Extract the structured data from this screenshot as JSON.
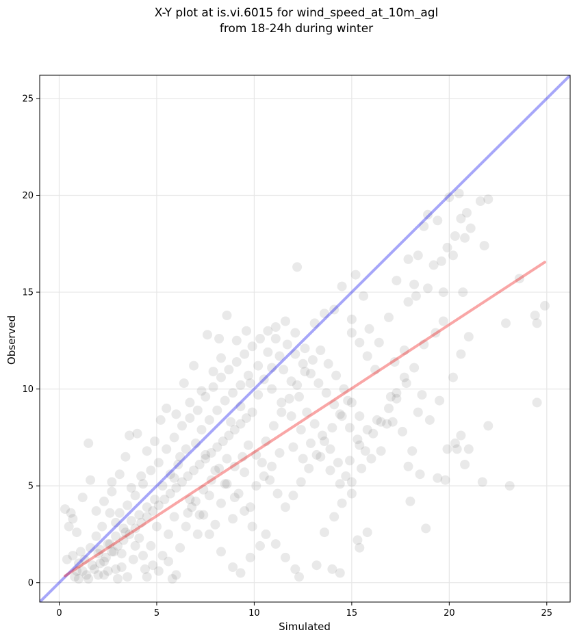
{
  "chart_data": {
    "type": "scatter",
    "title": [
      "X-Y plot at is.vi.6015 for wind_speed_at_10m_agl",
      "from 18-24h during winter"
    ],
    "xlabel": "Simulated",
    "ylabel": "Observed",
    "xlim": [
      -1,
      26.2
    ],
    "ylim": [
      -1,
      26.2
    ],
    "xticks": [
      0,
      5,
      10,
      15,
      20,
      25
    ],
    "yticks": [
      0,
      5,
      10,
      15,
      20,
      25
    ],
    "grid": true,
    "point_color": "#555555",
    "point_opacity": 0.13,
    "identity_line": {
      "color": "#0000ee",
      "opacity": 0.35,
      "from": [
        -1,
        -1
      ],
      "to": [
        26.2,
        26.2
      ]
    },
    "fit_line": {
      "color": "#ee0000",
      "opacity": 0.35,
      "from": [
        0.3,
        0.35
      ],
      "to": [
        24.9,
        16.55
      ]
    },
    "points": [
      [
        0.3,
        3.8
      ],
      [
        0.6,
        3.6
      ],
      [
        0.7,
        3.3
      ],
      [
        0.5,
        2.9
      ],
      [
        0.9,
        2.6
      ],
      [
        0.4,
        1.2
      ],
      [
        0.7,
        1.4
      ],
      [
        1.0,
        1.0
      ],
      [
        1.2,
        0.6
      ],
      [
        0.8,
        0.3
      ],
      [
        1.5,
        0.2
      ],
      [
        2.0,
        0.4
      ],
      [
        2.5,
        0.6
      ],
      [
        3.0,
        0.2
      ],
      [
        3.2,
        0.8
      ],
      [
        1.6,
        1.8
      ],
      [
        1.9,
        2.4
      ],
      [
        2.2,
        2.9
      ],
      [
        2.6,
        3.6
      ],
      [
        1.2,
        4.4
      ],
      [
        1.6,
        5.3
      ],
      [
        1.5,
        7.2
      ],
      [
        2.7,
        5.2
      ],
      [
        3.1,
        5.6
      ],
      [
        3.4,
        6.5
      ],
      [
        3.6,
        7.6
      ],
      [
        4.0,
        7.7
      ],
      [
        4.5,
        6.8
      ],
      [
        4.9,
        7.3
      ],
      [
        3.7,
        4.9
      ],
      [
        4.2,
        5.5
      ],
      [
        2.9,
        3.1
      ],
      [
        3.4,
        2.6
      ],
      [
        3.9,
        1.9
      ],
      [
        4.3,
        1.4
      ],
      [
        4.8,
        0.9
      ],
      [
        4.5,
        0.3
      ],
      [
        5.1,
        0.6
      ],
      [
        5.6,
        1.1
      ],
      [
        6.0,
        0.4
      ],
      [
        5.8,
        0.2
      ],
      [
        2.3,
        1.1
      ],
      [
        2.8,
        1.6
      ],
      [
        5.2,
        8.4
      ],
      [
        6.0,
        8.7
      ],
      [
        6.7,
        9.3
      ],
      [
        7.3,
        9.9
      ],
      [
        7.9,
        10.9
      ],
      [
        8.3,
        11.6
      ],
      [
        7.6,
        12.8
      ],
      [
        8.2,
        12.6
      ],
      [
        8.6,
        13.8
      ],
      [
        9.1,
        12.5
      ],
      [
        9.6,
        13.0
      ],
      [
        6.9,
        11.2
      ],
      [
        6.4,
        10.3
      ],
      [
        5.5,
        9.0
      ],
      [
        6.2,
        6.5
      ],
      [
        5.9,
        5.4
      ],
      [
        6.7,
        4.3
      ],
      [
        7.2,
        3.5
      ],
      [
        7.7,
        2.5
      ],
      [
        8.3,
        1.6
      ],
      [
        8.9,
        0.8
      ],
      [
        9.3,
        0.5
      ],
      [
        9.8,
        1.3
      ],
      [
        10.3,
        1.9
      ],
      [
        7.0,
        7.2
      ],
      [
        7.5,
        6.6
      ],
      [
        8.0,
        5.8
      ],
      [
        8.5,
        5.1
      ],
      [
        9.0,
        4.4
      ],
      [
        9.5,
        3.7
      ],
      [
        9.9,
        2.9
      ],
      [
        10.6,
        2.5
      ],
      [
        11.1,
        2.0
      ],
      [
        11.6,
        1.3
      ],
      [
        12.1,
        0.7
      ],
      [
        12.3,
        0.3
      ],
      [
        13.2,
        0.9
      ],
      [
        14.0,
        0.7
      ],
      [
        14.4,
        0.5
      ],
      [
        13.6,
        2.6
      ],
      [
        14.1,
        3.4
      ],
      [
        14.5,
        4.1
      ],
      [
        15.0,
        4.6
      ],
      [
        8.8,
        8.3
      ],
      [
        9.3,
        9.1
      ],
      [
        9.8,
        10.3
      ],
      [
        10.2,
        11.2
      ],
      [
        10.7,
        11.9
      ],
      [
        11.1,
        12.6
      ],
      [
        11.6,
        13.5
      ],
      [
        12.1,
        12.9
      ],
      [
        12.6,
        12.1
      ],
      [
        13.1,
        13.4
      ],
      [
        13.6,
        13.9
      ],
      [
        14.1,
        14.1
      ],
      [
        14.5,
        15.3
      ],
      [
        12.2,
        16.3
      ],
      [
        15.2,
        15.9
      ],
      [
        15.6,
        14.8
      ],
      [
        15.0,
        13.6
      ],
      [
        15.9,
        13.1
      ],
      [
        16.4,
        12.4
      ],
      [
        16.9,
        13.7
      ],
      [
        10.9,
        10.0
      ],
      [
        11.4,
        9.3
      ],
      [
        11.9,
        8.6
      ],
      [
        12.4,
        7.9
      ],
      [
        12.9,
        7.2
      ],
      [
        13.4,
        6.5
      ],
      [
        13.9,
        5.8
      ],
      [
        14.4,
        5.1
      ],
      [
        14.9,
        6.3
      ],
      [
        15.4,
        7.1
      ],
      [
        15.8,
        7.9
      ],
      [
        16.3,
        8.4
      ],
      [
        16.8,
        8.2
      ],
      [
        17.3,
        9.5
      ],
      [
        17.8,
        10.3
      ],
      [
        18.2,
        11.1
      ],
      [
        18.7,
        12.3
      ],
      [
        19.3,
        12.9
      ],
      [
        19.7,
        13.5
      ],
      [
        17.0,
        9.6
      ],
      [
        15.0,
        5.2
      ],
      [
        15.5,
        5.9
      ],
      [
        16.0,
        6.4
      ],
      [
        16.5,
        6.8
      ],
      [
        15.8,
        2.6
      ],
      [
        15.3,
        2.2
      ],
      [
        15.4,
        1.8
      ],
      [
        17.1,
        8.3
      ],
      [
        17.6,
        7.8
      ],
      [
        18.1,
        6.8
      ],
      [
        17.9,
        6.0
      ],
      [
        18.5,
        5.6
      ],
      [
        18.0,
        4.2
      ],
      [
        18.8,
        2.8
      ],
      [
        19.4,
        5.4
      ],
      [
        19.8,
        5.3
      ],
      [
        19.9,
        6.9
      ],
      [
        20.3,
        7.2
      ],
      [
        20.4,
        6.9
      ],
      [
        20.8,
        6.1
      ],
      [
        21.0,
        6.9
      ],
      [
        20.6,
        7.6
      ],
      [
        21.7,
        5.2
      ],
      [
        22.0,
        8.1
      ],
      [
        23.1,
        5.0
      ],
      [
        24.5,
        9.3
      ],
      [
        17.2,
        11.4
      ],
      [
        17.7,
        12.0
      ],
      [
        18.3,
        14.8
      ],
      [
        18.9,
        15.2
      ],
      [
        19.2,
        16.4
      ],
      [
        19.6,
        16.6
      ],
      [
        19.9,
        17.3
      ],
      [
        20.3,
        17.9
      ],
      [
        20.6,
        18.8
      ],
      [
        20.9,
        19.1
      ],
      [
        21.1,
        18.3
      ],
      [
        21.6,
        19.7
      ],
      [
        22.0,
        19.8
      ],
      [
        20.0,
        19.9
      ],
      [
        20.5,
        20.1
      ],
      [
        19.4,
        18.7
      ],
      [
        18.7,
        18.4
      ],
      [
        18.9,
        19.0
      ],
      [
        21.8,
        17.4
      ],
      [
        20.8,
        17.8
      ],
      [
        20.2,
        16.9
      ],
      [
        18.4,
        16.9
      ],
      [
        17.9,
        16.7
      ],
      [
        17.9,
        14.5
      ],
      [
        18.2,
        15.4
      ],
      [
        17.3,
        15.6
      ],
      [
        19.7,
        15.0
      ],
      [
        20.7,
        15.0
      ],
      [
        21.0,
        12.7
      ],
      [
        20.2,
        10.6
      ],
      [
        20.6,
        11.8
      ],
      [
        22.9,
        13.4
      ],
      [
        23.6,
        15.7
      ],
      [
        24.4,
        13.8
      ],
      [
        24.5,
        13.4
      ],
      [
        24.9,
        14.3
      ],
      [
        19.5,
        9.4
      ],
      [
        19.0,
        8.4
      ],
      [
        18.4,
        8.8
      ],
      [
        18.6,
        9.7
      ],
      [
        1.0,
        0.2
      ],
      [
        1.4,
        0.4
      ],
      [
        1.8,
        0.7
      ],
      [
        2.1,
        1.0
      ],
      [
        2.4,
        1.3
      ],
      [
        2.7,
        1.6
      ],
      [
        3.0,
        1.9
      ],
      [
        3.3,
        2.2
      ],
      [
        3.6,
        2.5
      ],
      [
        3.9,
        2.8
      ],
      [
        4.2,
        3.1
      ],
      [
        4.5,
        3.4
      ],
      [
        4.8,
        3.7
      ],
      [
        5.1,
        4.0
      ],
      [
        5.4,
        4.3
      ],
      [
        5.7,
        4.6
      ],
      [
        6.0,
        4.9
      ],
      [
        6.3,
        5.2
      ],
      [
        6.6,
        5.5
      ],
      [
        6.9,
        5.8
      ],
      [
        7.2,
        6.1
      ],
      [
        7.5,
        6.4
      ],
      [
        7.8,
        6.7
      ],
      [
        8.1,
        7.0
      ],
      [
        8.4,
        7.3
      ],
      [
        8.7,
        7.6
      ],
      [
        9.0,
        7.9
      ],
      [
        9.3,
        8.2
      ],
      [
        9.6,
        8.5
      ],
      [
        9.9,
        8.8
      ],
      [
        1.7,
        0.9
      ],
      [
        2.0,
        1.5
      ],
      [
        2.3,
        0.4
      ],
      [
        2.6,
        2.0
      ],
      [
        2.9,
        0.7
      ],
      [
        3.2,
        1.5
      ],
      [
        3.5,
        0.3
      ],
      [
        3.8,
        1.2
      ],
      [
        4.1,
        2.3
      ],
      [
        4.4,
        0.7
      ],
      [
        4.7,
        1.9
      ],
      [
        5.0,
        2.9
      ],
      [
        5.3,
        1.4
      ],
      [
        5.6,
        2.5
      ],
      [
        5.9,
        3.4
      ],
      [
        6.2,
        1.8
      ],
      [
        6.5,
        2.9
      ],
      [
        6.8,
        3.9
      ],
      [
        7.1,
        2.5
      ],
      [
        7.4,
        3.5
      ],
      [
        7.7,
        4.5
      ],
      [
        8.0,
        3.0
      ],
      [
        8.3,
        4.1
      ],
      [
        8.6,
        5.1
      ],
      [
        8.9,
        3.3
      ],
      [
        9.2,
        4.6
      ],
      [
        9.5,
        5.7
      ],
      [
        9.8,
        3.9
      ],
      [
        10.1,
        5.0
      ],
      [
        10.4,
        6.2
      ],
      [
        1.9,
        3.7
      ],
      [
        2.3,
        4.2
      ],
      [
        2.7,
        4.7
      ],
      [
        3.1,
        3.6
      ],
      [
        3.5,
        4.0
      ],
      [
        3.9,
        4.5
      ],
      [
        4.3,
        5.1
      ],
      [
        4.7,
        5.8
      ],
      [
        5.1,
        6.2
      ],
      [
        5.5,
        6.9
      ],
      [
        5.9,
        7.5
      ],
      [
        6.3,
        8.1
      ],
      [
        6.7,
        8.5
      ],
      [
        7.1,
        8.9
      ],
      [
        7.5,
        9.6
      ],
      [
        7.9,
        10.1
      ],
      [
        8.3,
        10.6
      ],
      [
        8.7,
        11.0
      ],
      [
        9.1,
        11.4
      ],
      [
        9.5,
        11.8
      ],
      [
        9.9,
        12.2
      ],
      [
        10.3,
        12.6
      ],
      [
        10.7,
        13.0
      ],
      [
        11.1,
        13.2
      ],
      [
        10.6,
        7.3
      ],
      [
        11.0,
        8.1
      ],
      [
        11.4,
        8.8
      ],
      [
        11.8,
        9.5
      ],
      [
        12.2,
        10.2
      ],
      [
        12.6,
        10.9
      ],
      [
        13.0,
        11.5
      ],
      [
        13.4,
        12.0
      ],
      [
        13.8,
        11.3
      ],
      [
        14.2,
        10.7
      ],
      [
        14.6,
        10.0
      ],
      [
        15.0,
        9.3
      ],
      [
        15.4,
        8.6
      ],
      [
        10.8,
        5.3
      ],
      [
        11.2,
        4.6
      ],
      [
        11.6,
        3.9
      ],
      [
        12.0,
        4.5
      ],
      [
        12.4,
        5.2
      ],
      [
        12.8,
        5.9
      ],
      [
        13.2,
        6.6
      ],
      [
        13.6,
        7.3
      ],
      [
        14.0,
        8.0
      ],
      [
        14.4,
        8.7
      ],
      [
        14.8,
        9.4
      ],
      [
        10.2,
        9.7
      ],
      [
        10.5,
        10.5
      ],
      [
        10.9,
        11.1
      ],
      [
        11.3,
        11.7
      ],
      [
        11.7,
        12.3
      ],
      [
        12.1,
        11.8
      ],
      [
        12.5,
        11.3
      ],
      [
        12.9,
        10.8
      ],
      [
        13.3,
        10.3
      ],
      [
        13.7,
        9.8
      ],
      [
        14.1,
        9.2
      ],
      [
        14.5,
        8.6
      ],
      [
        14.9,
        8.0
      ],
      [
        15.3,
        7.4
      ],
      [
        15.7,
        6.8
      ],
      [
        16.1,
        7.7
      ],
      [
        16.5,
        8.3
      ],
      [
        16.9,
        9.0
      ],
      [
        17.3,
        9.8
      ],
      [
        17.7,
        10.6
      ],
      [
        16.2,
        11.0
      ],
      [
        15.8,
        11.7
      ],
      [
        15.4,
        12.4
      ],
      [
        15.0,
        12.9
      ],
      [
        7.3,
        7.9
      ],
      [
        7.7,
        8.4
      ],
      [
        8.1,
        8.9
      ],
      [
        8.5,
        9.4
      ],
      [
        8.9,
        9.8
      ],
      [
        9.3,
        10.2
      ],
      [
        9.7,
        10.7
      ],
      [
        6.5,
        6.9
      ],
      [
        6.1,
        6.1
      ],
      [
        5.7,
        5.6
      ],
      [
        5.3,
        5.0
      ],
      [
        4.9,
        4.3
      ],
      [
        4.5,
        3.9
      ],
      [
        4.1,
        3.5
      ],
      [
        3.7,
        3.2
      ],
      [
        3.3,
        2.8
      ],
      [
        2.9,
        2.4
      ],
      [
        2.5,
        2.0
      ],
      [
        2.1,
        1.7
      ],
      [
        1.3,
        1.2
      ],
      [
        1.1,
        1.6
      ],
      [
        0.9,
        0.6
      ],
      [
        11.5,
        11.0
      ],
      [
        11.9,
        10.4
      ],
      [
        12.3,
        9.6
      ],
      [
        12.7,
        8.8
      ],
      [
        13.1,
        8.2
      ],
      [
        13.5,
        7.6
      ],
      [
        13.9,
        6.9
      ],
      [
        14.3,
        6.2
      ],
      [
        14.7,
        5.5
      ],
      [
        12.5,
        6.4
      ],
      [
        12.0,
        7.0
      ],
      [
        11.3,
        6.7
      ],
      [
        10.9,
        6.0
      ],
      [
        10.5,
        5.5
      ],
      [
        10.1,
        6.6
      ],
      [
        9.7,
        7.1
      ],
      [
        9.4,
        6.5
      ],
      [
        9.0,
        6.0
      ],
      [
        8.6,
        6.4
      ],
      [
        8.2,
        5.9
      ],
      [
        7.8,
        5.3
      ],
      [
        7.4,
        4.8
      ],
      [
        7.0,
        4.2
      ],
      [
        6.6,
        3.6
      ]
    ]
  }
}
